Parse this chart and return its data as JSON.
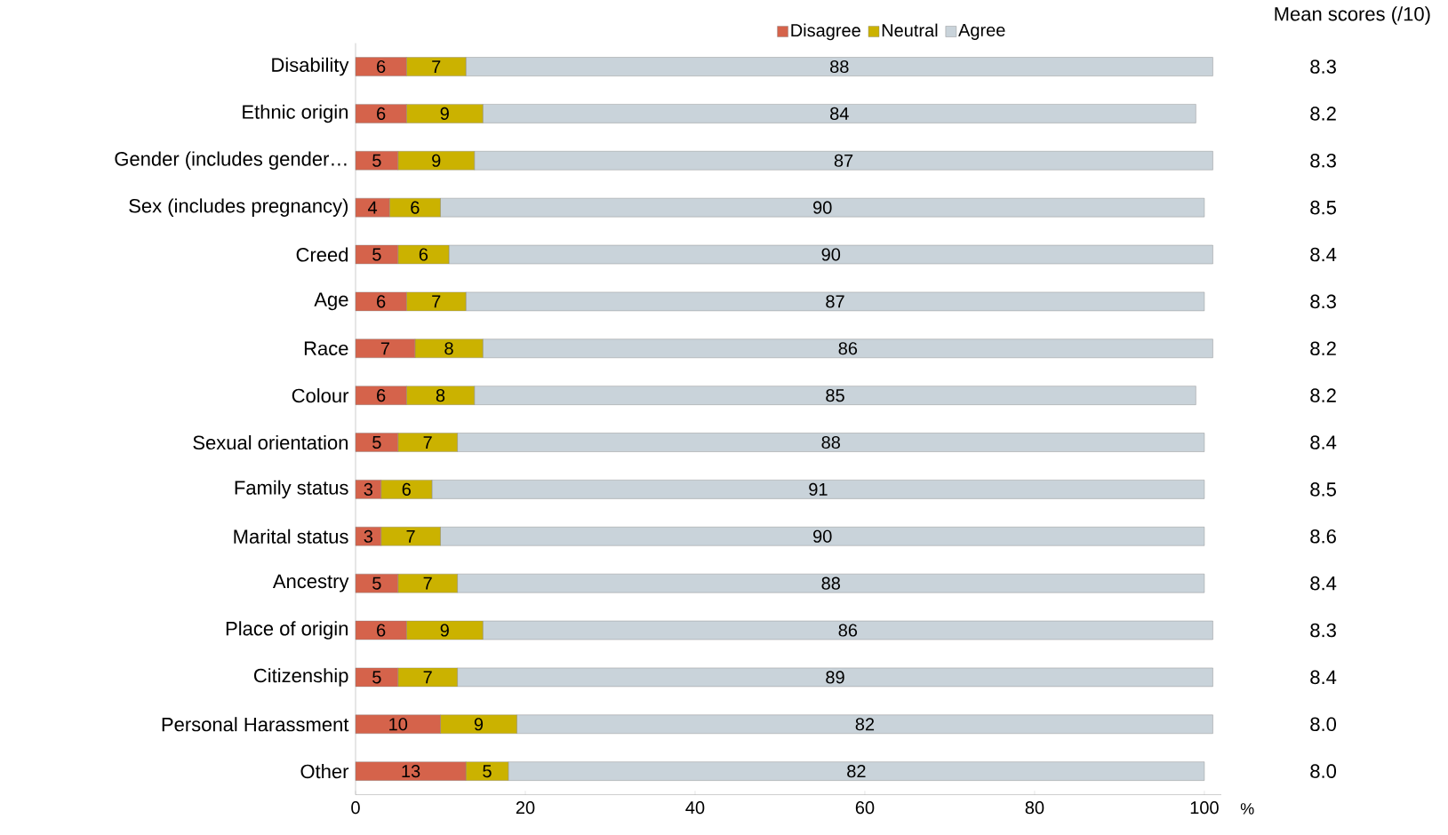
{
  "chart_data": {
    "type": "bar",
    "orientation": "horizontal",
    "stacked": true,
    "data_labels": true,
    "legend": "top",
    "xlabel": "%",
    "categories": [
      "Disability",
      "Ethnic origin",
      "Gender (includes gender…",
      "Sex (includes pregnancy)",
      "Creed",
      "Age",
      "Race",
      "Colour",
      "Sexual orientation",
      "Family status",
      "Marital status",
      "Ancestry",
      "Place of origin",
      "Citizenship",
      "Personal Harassment",
      "Other"
    ],
    "series": [
      {
        "name": "Disagree",
        "color": "#d5634b",
        "values": [
          6,
          6,
          5,
          4,
          5,
          6,
          7,
          6,
          5,
          3,
          3,
          5,
          6,
          5,
          10,
          13
        ]
      },
      {
        "name": "Neutral",
        "color": "#cbb200",
        "values": [
          7,
          9,
          9,
          6,
          6,
          7,
          8,
          8,
          7,
          6,
          7,
          7,
          9,
          7,
          9,
          5
        ]
      },
      {
        "name": "Agree",
        "color": "#c9d3da",
        "values": [
          88,
          84,
          87,
          90,
          90,
          87,
          86,
          85,
          88,
          91,
          90,
          88,
          86,
          89,
          82,
          82
        ]
      }
    ],
    "xlim": [
      0,
      102
    ],
    "xticks": [
      0,
      20,
      40,
      60,
      80,
      100
    ],
    "annotations": [
      "Mean scores (/10)",
      "8.3",
      "8.2",
      "8.3",
      "8.5",
      "8.4",
      "8.3",
      "8.2",
      "8.2",
      "8.4",
      "8.5",
      "8.6",
      "8.4",
      "8.3",
      "8.4",
      "8.0",
      "8.0"
    ]
  }
}
